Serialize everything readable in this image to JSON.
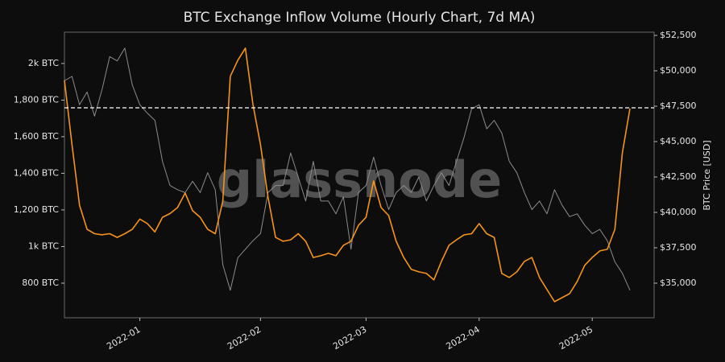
{
  "chart_data": {
    "type": "line",
    "title": "BTC Exchange Inflow Volume (Hourly Chart, 7d MA)",
    "watermark": "glassnode",
    "y2label": "BTC Price [USD]",
    "categories": [
      null,
      null,
      null,
      null,
      null,
      null,
      null,
      null,
      null,
      null,
      "2022-01",
      null,
      null,
      null,
      null,
      null,
      null,
      null,
      null,
      null,
      null,
      null,
      null,
      null,
      null,
      null,
      "2022-02",
      null,
      null,
      null,
      null,
      null,
      null,
      null,
      null,
      null,
      null,
      null,
      null,
      null,
      "2022-03",
      null,
      null,
      null,
      null,
      null,
      null,
      null,
      null,
      null,
      null,
      null,
      null,
      null,
      null,
      "2022-04",
      null,
      null,
      null,
      null,
      null,
      null,
      null,
      null,
      null,
      null,
      null,
      null,
      null,
      null,
      "2022-05",
      null,
      null,
      null,
      null,
      null
    ],
    "series": [
      {
        "color": "#f7931a",
        "axis": "y",
        "values": [
          1908,
          1556,
          1226,
          1094,
          1070,
          1064,
          1070,
          1050,
          1070,
          1094,
          1150,
          1125,
          1080,
          1160,
          1180,
          1213,
          1292,
          1196,
          1160,
          1094,
          1070,
          1248,
          1930,
          2018,
          2084,
          1776,
          1556,
          1270,
          1050,
          1029,
          1037,
          1070,
          1029,
          940,
          950,
          963,
          950,
          1007,
          1029,
          1116,
          1160,
          1358,
          1213,
          1169,
          1029,
          940,
          875,
          862,
          853,
          818,
          919,
          1007,
          1037,
          1064,
          1070,
          1125,
          1070,
          1050,
          853,
          831,
          862,
          919,
          940,
          831,
          765,
          699,
          721,
          743,
          809,
          897,
          940,
          976,
          985,
          1094,
          1512,
          1754
        ]
      },
      {
        "color": "#8c8c8c",
        "axis": "y2",
        "values": [
          49300,
          49600,
          47600,
          48500,
          46800,
          48700,
          51000,
          50700,
          51600,
          49000,
          47600,
          47000,
          46500,
          43600,
          41900,
          41600,
          41400,
          42200,
          41400,
          42800,
          41600,
          36300,
          34500,
          36800,
          37400,
          38000,
          38500,
          41400,
          41900,
          41900,
          44200,
          42500,
          40800,
          43600,
          40800,
          40800,
          39900,
          41100,
          37400,
          41400,
          41900,
          43900,
          41900,
          40200,
          41400,
          41900,
          41400,
          42500,
          40800,
          41900,
          42800,
          41900,
          43600,
          45300,
          47300,
          47600,
          45900,
          46500,
          45600,
          43600,
          42800,
          41400,
          40200,
          40800,
          39900,
          41600,
          40500,
          39700,
          39900,
          39100,
          38500,
          38800,
          38000,
          36500,
          35700,
          34500
        ]
      }
    ],
    "reference_line": 1758,
    "ylim": [
      611,
      2171
    ],
    "yticks": [
      {
        "value": 800,
        "label": "800 BTC"
      },
      {
        "value": 1000,
        "label": "1k BTC"
      },
      {
        "value": 1200,
        "label": "1,200 BTC"
      },
      {
        "value": 1400,
        "label": "1,400 BTC"
      },
      {
        "value": 1600,
        "label": "1,600 BTC"
      },
      {
        "value": 1800,
        "label": "1,800 BTC"
      },
      {
        "value": 2000,
        "label": "2k BTC"
      }
    ],
    "y2lim": [
      32557,
      52727
    ],
    "y2ticks": [
      {
        "value": 35000,
        "label": "$35,000"
      },
      {
        "value": 37500,
        "label": "$37,500"
      },
      {
        "value": 40000,
        "label": "$40,000"
      },
      {
        "value": 42500,
        "label": "$42,500"
      },
      {
        "value": 45000,
        "label": "$45,000"
      },
      {
        "value": 47500,
        "label": "$47,500"
      },
      {
        "value": 50000,
        "label": "$50,000"
      },
      {
        "value": 52500,
        "label": "$52,500"
      }
    ]
  }
}
